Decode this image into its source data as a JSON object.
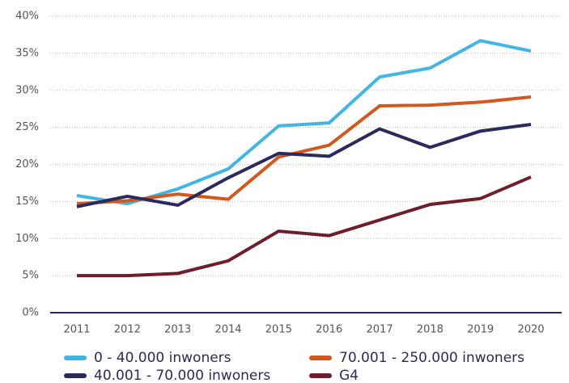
{
  "chart_data": {
    "type": "line",
    "categories": [
      "2011",
      "2012",
      "2013",
      "2014",
      "2015",
      "2016",
      "2017",
      "2018",
      "2019",
      "2020"
    ],
    "series": [
      {
        "name": "0 - 40.000 inwoners",
        "color": "#41b6e6",
        "values": [
          15.8,
          14.7,
          16.7,
          19.4,
          25.2,
          25.6,
          31.8,
          33.0,
          36.7,
          35.3
        ]
      },
      {
        "name": "70.001 - 250.000 inwoners",
        "color": "#d4571c",
        "values": [
          14.7,
          15.1,
          16.0,
          15.3,
          21.0,
          22.6,
          27.9,
          28.0,
          28.4,
          29.1
        ]
      },
      {
        "name": "40.001 - 70.000 inwoners",
        "color": "#2a2a5e",
        "values": [
          14.3,
          15.7,
          14.5,
          18.2,
          21.5,
          21.1,
          24.8,
          22.3,
          24.5,
          25.4
        ]
      },
      {
        "name": "G4",
        "color": "#6e1f2b",
        "values": [
          5.0,
          5.0,
          5.3,
          7.0,
          11.0,
          10.4,
          12.5,
          14.6,
          15.4,
          18.3
        ]
      }
    ],
    "ylim": [
      0,
      40
    ],
    "yticks": [
      {
        "value": 0,
        "label": "0%"
      },
      {
        "value": 5,
        "label": "5%"
      },
      {
        "value": 10,
        "label": "10%"
      },
      {
        "value": 15,
        "label": "15%"
      },
      {
        "value": 20,
        "label": "20%"
      },
      {
        "value": 25,
        "label": "25%"
      },
      {
        "value": 30,
        "label": "30%"
      },
      {
        "value": 35,
        "label": "35%"
      },
      {
        "value": 40,
        "label": "40%"
      }
    ],
    "grid": true
  }
}
